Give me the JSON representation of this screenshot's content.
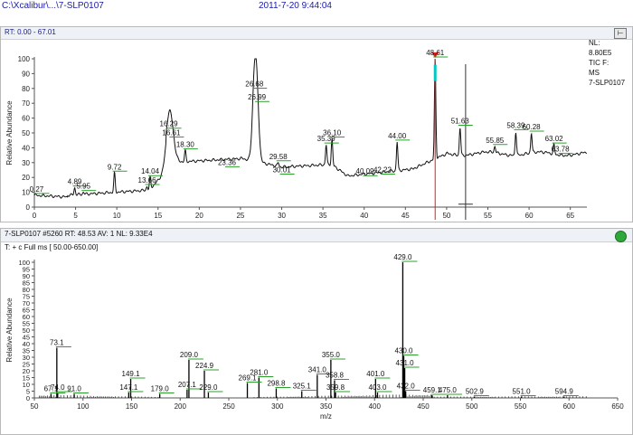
{
  "header": {
    "path": "C:\\Xcalibur\\...\\7-SLP0107",
    "datetime": "2011-7-20 9:44:04"
  },
  "chromatogram": {
    "range_label": "RT: 0.00 - 67.01",
    "info": [
      "NL:",
      "8.80E5",
      "TIC F:",
      "MS",
      "7-SLP0107"
    ],
    "ylabel": "Relative Abundance",
    "xlabel": "Time (min)",
    "xticks": [
      "0",
      "5",
      "10",
      "15",
      "20",
      "25",
      "30",
      "35",
      "40",
      "45",
      "50",
      "55",
      "60",
      "65"
    ],
    "yticks": [
      "0",
      "10",
      "20",
      "30",
      "40",
      "50",
      "60",
      "70",
      "80",
      "90",
      "100"
    ],
    "peaks": [
      {
        "label": "0.27",
        "x": 0.27,
        "y": 8
      },
      {
        "label": "4.89",
        "x": 4.89,
        "y": 13
      },
      {
        "label": "5.95",
        "x": 5.95,
        "y": 10
      },
      {
        "label": "9.72",
        "x": 9.72,
        "y": 23
      },
      {
        "label": "13.66",
        "x": 13.66,
        "y": 14
      },
      {
        "label": "14.04",
        "x": 14.04,
        "y": 20
      },
      {
        "label": "16.29",
        "x": 16.29,
        "y": 52
      },
      {
        "label": "16.61",
        "x": 16.61,
        "y": 46
      },
      {
        "label": "18.30",
        "x": 18.3,
        "y": 38
      },
      {
        "label": "23.36",
        "x": 23.36,
        "y": 26
      },
      {
        "label": "26.68",
        "x": 26.68,
        "y": 79
      },
      {
        "label": "26.99",
        "x": 26.99,
        "y": 70
      },
      {
        "label": "29.58",
        "x": 29.58,
        "y": 30
      },
      {
        "label": "30.01",
        "x": 30.01,
        "y": 21
      },
      {
        "label": "35.39",
        "x": 35.39,
        "y": 42
      },
      {
        "label": "36.10",
        "x": 36.1,
        "y": 46
      },
      {
        "label": "40.09",
        "x": 40.09,
        "y": 20
      },
      {
        "label": "42.22",
        "x": 42.22,
        "y": 21
      },
      {
        "label": "44.00",
        "x": 44.0,
        "y": 44
      },
      {
        "label": "48.61",
        "x": 48.61,
        "y": 100
      },
      {
        "label": "51.63",
        "x": 51.63,
        "y": 54
      },
      {
        "label": "55.85",
        "x": 55.85,
        "y": 41
      },
      {
        "label": "58.39",
        "x": 58.39,
        "y": 51
      },
      {
        "label": "60.28",
        "x": 60.28,
        "y": 50
      },
      {
        "label": "63.02",
        "x": 63.02,
        "y": 42
      },
      {
        "label": "63.78",
        "x": 63.78,
        "y": 35
      }
    ],
    "marker_rt": 48.61,
    "cursor_rt": 52.3
  },
  "spectrum": {
    "title_line": "7-SLP0107 #5260   RT: 48.53   AV: 1   NL: 9.33E4",
    "filter_line": "T: + c Full ms [ 50.00-650.00]",
    "ylabel": "Relative Abundance",
    "xlabel": "m/z",
    "xticks": [
      "50",
      "100",
      "150",
      "200",
      "250",
      "300",
      "350",
      "400",
      "450",
      "500",
      "550",
      "600",
      "650"
    ],
    "yticks": [
      "0",
      "5",
      "10",
      "15",
      "20",
      "25",
      "30",
      "35",
      "40",
      "45",
      "50",
      "55",
      "60",
      "65",
      "70",
      "75",
      "80",
      "85",
      "90",
      "95",
      "100"
    ],
    "peaks": [
      {
        "label": "67.1",
        "mz": 67.1,
        "y": 3
      },
      {
        "label": "73.1",
        "mz": 73.1,
        "y": 37
      },
      {
        "label": "74.0",
        "mz": 74.0,
        "y": 4
      },
      {
        "label": "91.0",
        "mz": 91.0,
        "y": 3
      },
      {
        "label": "147.1",
        "mz": 147.1,
        "y": 4
      },
      {
        "label": "149.1",
        "mz": 149.1,
        "y": 14
      },
      {
        "label": "179.0",
        "mz": 179.0,
        "y": 3
      },
      {
        "label": "207.1",
        "mz": 207.1,
        "y": 6
      },
      {
        "label": "209.0",
        "mz": 209.0,
        "y": 28
      },
      {
        "label": "224.9",
        "mz": 224.9,
        "y": 20
      },
      {
        "label": "229.0",
        "mz": 229.0,
        "y": 4
      },
      {
        "label": "269.1",
        "mz": 269.1,
        "y": 11
      },
      {
        "label": "281.0",
        "mz": 281.0,
        "y": 15
      },
      {
        "label": "298.8",
        "mz": 298.8,
        "y": 7
      },
      {
        "label": "325.1",
        "mz": 325.1,
        "y": 5
      },
      {
        "label": "341.0",
        "mz": 341.0,
        "y": 17
      },
      {
        "label": "355.0",
        "mz": 355.0,
        "y": 28
      },
      {
        "label": "358.8",
        "mz": 358.8,
        "y": 13
      },
      {
        "label": "359.8",
        "mz": 359.8,
        "y": 4
      },
      {
        "label": "401.0",
        "mz": 401.0,
        "y": 14
      },
      {
        "label": "403.0",
        "mz": 403.0,
        "y": 4
      },
      {
        "label": "429.0",
        "mz": 429.0,
        "y": 100
      },
      {
        "label": "430.0",
        "mz": 430.0,
        "y": 31
      },
      {
        "label": "431.0",
        "mz": 431.0,
        "y": 22
      },
      {
        "label": "432.0",
        "mz": 432.0,
        "y": 5
      },
      {
        "label": "459.1",
        "mz": 459.1,
        "y": 2
      },
      {
        "label": "475.0",
        "mz": 475.0,
        "y": 2
      },
      {
        "label": "502.9",
        "mz": 502.9,
        "y": 1
      },
      {
        "label": "551.0",
        "mz": 551.0,
        "y": 1
      },
      {
        "label": "594.9",
        "mz": 594.9,
        "y": 1
      }
    ]
  },
  "colors": {
    "trace": "#111111",
    "label_underline": "#2ba12b",
    "marker_red": "#e0201b",
    "peak_cyan": "#00c6c6"
  }
}
